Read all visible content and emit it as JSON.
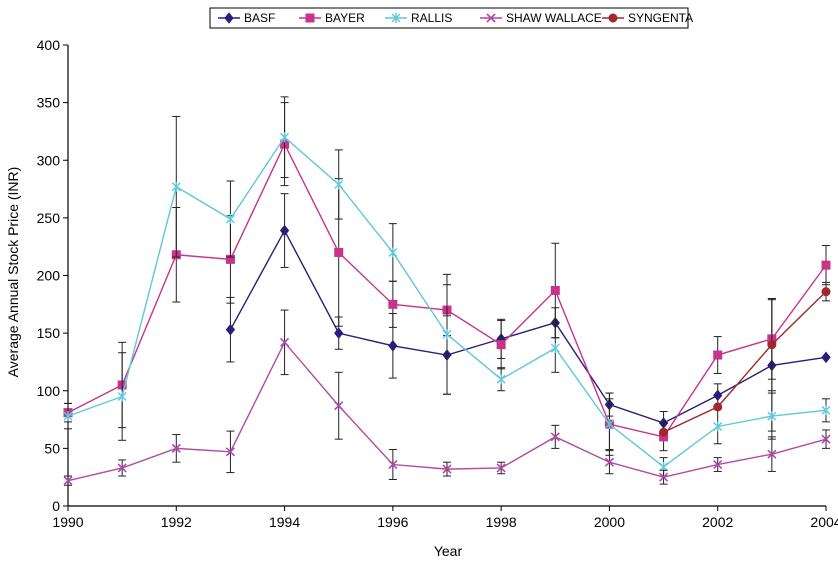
{
  "chart_data": {
    "type": "line",
    "title": "",
    "xlabel": "Year",
    "ylabel": "Average Annual Stock Price (INR)",
    "xlim": [
      1990,
      2004
    ],
    "ylim": [
      0,
      400
    ],
    "x_ticks": [
      "1990",
      "1992",
      "1994",
      "1996",
      "1998",
      "2000",
      "2002",
      "2004"
    ],
    "y_ticks": [
      "0",
      "50",
      "100",
      "150",
      "200",
      "250",
      "300",
      "350",
      "400"
    ],
    "grid": false,
    "legend_position": "top",
    "series": [
      {
        "name": "BASF",
        "color": "#2a1e7a",
        "marker": "diamond",
        "points": [
          {
            "x": 1993,
            "y": 153,
            "err": 28
          },
          {
            "x": 1994,
            "y": 239,
            "err": 32
          },
          {
            "x": 1995,
            "y": 150,
            "err": 14
          },
          {
            "x": 1996,
            "y": 139,
            "err": 28
          },
          {
            "x": 1997,
            "y": 131,
            "err": 34
          },
          {
            "x": 1998,
            "y": 145,
            "err": 17
          },
          {
            "x": 1999,
            "y": 159,
            "err": 13
          },
          {
            "x": 2000,
            "y": 88,
            "err": 10
          },
          {
            "x": 2001,
            "y": 72,
            "err": 10
          },
          {
            "x": 2002,
            "y": 96,
            "err": 10
          },
          {
            "x": 2003,
            "y": 122,
            "err": 57
          },
          {
            "x": 2004,
            "y": 129,
            "err": 0
          }
        ]
      },
      {
        "name": "BAYER",
        "color": "#c8348a",
        "marker": "square",
        "points": [
          {
            "x": 1990,
            "y": 81,
            "err": 8
          },
          {
            "x": 1991,
            "y": 105,
            "err": 37
          },
          {
            "x": 1992,
            "y": 218,
            "err": 41
          },
          {
            "x": 1993,
            "y": 214,
            "err": 38
          },
          {
            "x": 1994,
            "y": 314,
            "err": 36
          },
          {
            "x": 1995,
            "y": 220,
            "err": 64
          },
          {
            "x": 1996,
            "y": 175,
            "err": 20
          },
          {
            "x": 1997,
            "y": 170,
            "err": 22
          },
          {
            "x": 1998,
            "y": 140,
            "err": 21
          },
          {
            "x": 1999,
            "y": 187,
            "err": 41
          },
          {
            "x": 2000,
            "y": 71,
            "err": 27
          },
          {
            "x": 2001,
            "y": 60,
            "err": 12
          },
          {
            "x": 2002,
            "y": 131,
            "err": 16
          },
          {
            "x": 2003,
            "y": 145,
            "err": 35
          },
          {
            "x": 2004,
            "y": 209,
            "err": 17
          }
        ]
      },
      {
        "name": "RALLIS",
        "color": "#5ec8dc",
        "marker": "star",
        "points": [
          {
            "x": 1990,
            "y": 78,
            "err": 11
          },
          {
            "x": 1991,
            "y": 95,
            "err": 38
          },
          {
            "x": 1992,
            "y": 277,
            "err": 61
          },
          {
            "x": 1993,
            "y": 249,
            "err": 33
          },
          {
            "x": 1994,
            "y": 320,
            "err": 35
          },
          {
            "x": 1995,
            "y": 279,
            "err": 30
          },
          {
            "x": 1996,
            "y": 220,
            "err": 25
          },
          {
            "x": 1997,
            "y": 149,
            "err": 52
          },
          {
            "x": 1998,
            "y": 110,
            "err": 10
          },
          {
            "x": 1999,
            "y": 137,
            "err": 21
          },
          {
            "x": 2000,
            "y": 71,
            "err": 22
          },
          {
            "x": 2001,
            "y": 34,
            "err": 8
          },
          {
            "x": 2002,
            "y": 69,
            "err": 15
          },
          {
            "x": 2003,
            "y": 78,
            "err": 20
          },
          {
            "x": 2004,
            "y": 83,
            "err": 10
          }
        ]
      },
      {
        "name": "SHAW WALLACE",
        "color": "#b04aa6",
        "marker": "x",
        "points": [
          {
            "x": 1990,
            "y": 22,
            "err": 4
          },
          {
            "x": 1991,
            "y": 33,
            "err": 7
          },
          {
            "x": 1992,
            "y": 50,
            "err": 12
          },
          {
            "x": 1993,
            "y": 47,
            "err": 18
          },
          {
            "x": 1994,
            "y": 142,
            "err": 28
          },
          {
            "x": 1995,
            "y": 87,
            "err": 29
          },
          {
            "x": 1996,
            "y": 36,
            "err": 13
          },
          {
            "x": 1997,
            "y": 32,
            "err": 6
          },
          {
            "x": 1998,
            "y": 33,
            "err": 5
          },
          {
            "x": 1999,
            "y": 60,
            "err": 10
          },
          {
            "x": 2000,
            "y": 38,
            "err": 10
          },
          {
            "x": 2001,
            "y": 25,
            "err": 6
          },
          {
            "x": 2002,
            "y": 36,
            "err": 6
          },
          {
            "x": 2003,
            "y": 45,
            "err": 15
          },
          {
            "x": 2004,
            "y": 58,
            "err": 8
          }
        ]
      },
      {
        "name": "SYNGENTA",
        "color": "#a0282c",
        "marker": "circle",
        "points": [
          {
            "x": 2001,
            "y": 64,
            "err": 0
          },
          {
            "x": 2002,
            "y": 86,
            "err": 0
          },
          {
            "x": 2003,
            "y": 140,
            "err": 40
          },
          {
            "x": 2004,
            "y": 186,
            "err": 8
          }
        ]
      }
    ]
  }
}
